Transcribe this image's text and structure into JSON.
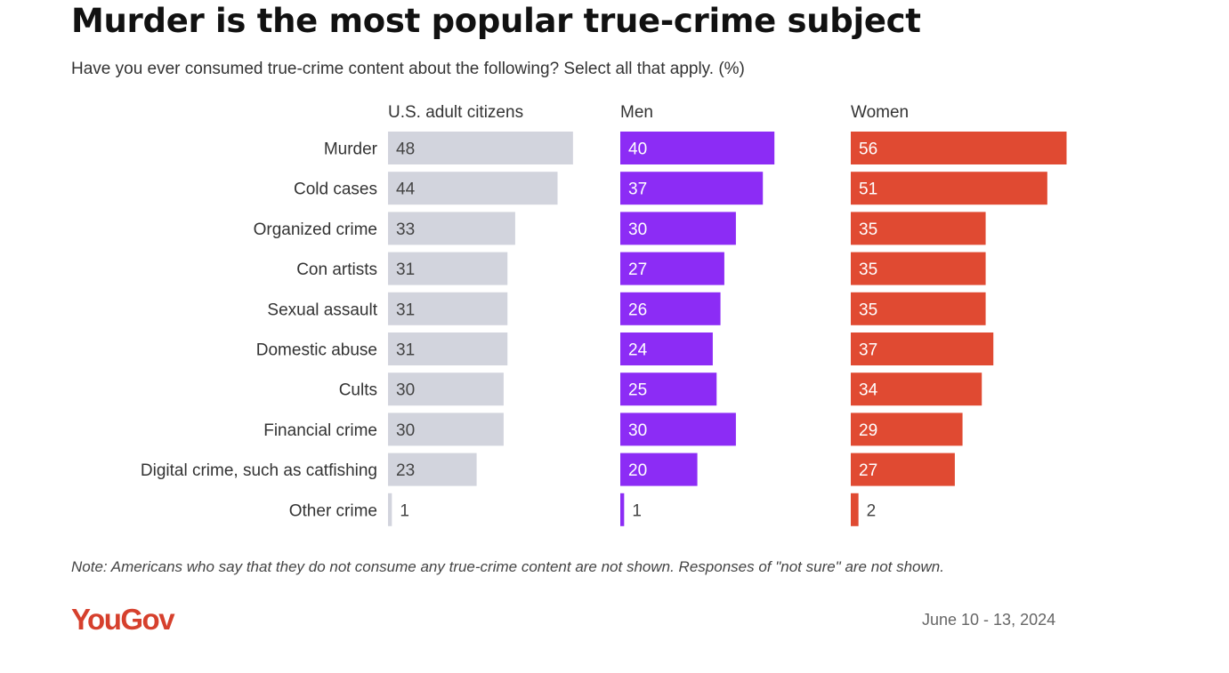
{
  "title": "Murder is the most popular true-crime subject",
  "subtitle": "Have you ever consumed true-crime content about the following? Select all that apply. (%)",
  "note": "Note: Americans who say that they do not consume any true-crime content are not shown. Responses of \"not sure\" are not shown.",
  "logo": "YouGov",
  "date": "June 10 - 13, 2024",
  "chart_data": {
    "type": "bar",
    "orientation": "horizontal",
    "categories": [
      "Murder",
      "Cold cases",
      "Organized crime",
      "Con artists",
      "Sexual assault",
      "Domestic abuse",
      "Cults",
      "Financial crime",
      "Digital crime, such as catfishing",
      "Other crime"
    ],
    "series": [
      {
        "name": "U.S. adult citizens",
        "color": "#d2d4dd",
        "label_color": "#444444",
        "values": [
          48,
          44,
          33,
          31,
          31,
          31,
          30,
          30,
          23,
          1
        ]
      },
      {
        "name": "Men",
        "color": "#8c2cf5",
        "label_color": "#ffffff",
        "values": [
          40,
          37,
          30,
          27,
          26,
          24,
          25,
          30,
          20,
          1
        ]
      },
      {
        "name": "Women",
        "color": "#e04a32",
        "label_color": "#ffffff",
        "values": [
          56,
          51,
          35,
          35,
          35,
          37,
          34,
          29,
          27,
          2
        ]
      }
    ],
    "unit": "%",
    "xlim": [
      0,
      60
    ]
  }
}
